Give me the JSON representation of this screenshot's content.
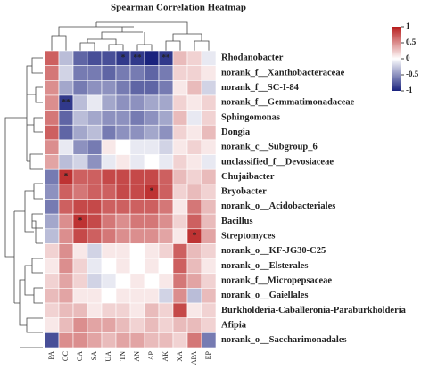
{
  "chart_data": {
    "type": "heatmap",
    "title": "Spearman Correlation Heatmap",
    "columns": [
      "PA",
      "OC",
      "CA",
      "SA",
      "UA",
      "TN",
      "AN",
      "AP",
      "AK",
      "XA",
      "APA",
      "EP"
    ],
    "rows": [
      "Rhodanobacter",
      "norank_f__Xanthobacteraceae",
      "norank_f__SC-I-84",
      "norank_f__Gemmatimonadaceae",
      "Sphingomonas",
      "Dongia",
      "norank_c__Subgroup_6",
      "unclassified_f__Devosiaceae",
      "Chujaibacter",
      "Bryobacter",
      "norank_o__Acidobacteriales",
      "Bacillus",
      "Streptomyces",
      "norank_o__KF-JG30-C25",
      "norank_o__Elsterales",
      "norank_f__Micropepsaceae",
      "norank_o__Gaiellales",
      "Burkholderia-Caballeronia-Paraburkholderia",
      "Afipia",
      "norank_o__Saccharimonadales"
    ],
    "values": [
      [
        0.7,
        -0.3,
        -0.7,
        -0.8,
        -0.8,
        -0.9,
        -0.9,
        -1,
        -0.9,
        0.3,
        0.2,
        -0.1
      ],
      [
        0.6,
        -0.2,
        -0.6,
        -0.6,
        -0.7,
        -0.6,
        -0.6,
        -0.7,
        -0.6,
        0.2,
        0.2,
        0.1
      ],
      [
        0.5,
        -0.4,
        -0.6,
        -0.5,
        -0.5,
        -0.6,
        -0.7,
        -0.7,
        -0.6,
        0.1,
        0.3,
        -0.2
      ],
      [
        0.5,
        -0.9,
        -0.3,
        -0.1,
        -0.4,
        -0.5,
        -0.5,
        -0.4,
        -0.4,
        0.2,
        0.1,
        0.2
      ],
      [
        0.6,
        -0.7,
        -0.3,
        -0.4,
        -0.5,
        -0.5,
        -0.6,
        -0.5,
        -0.4,
        0.3,
        -0.1,
        0.2
      ],
      [
        0.7,
        -0.7,
        -0.4,
        -0.3,
        -0.6,
        -0.5,
        -0.5,
        -0.4,
        -0.5,
        0.2,
        0.1,
        0.3
      ],
      [
        0.5,
        -0.1,
        -0.5,
        -0.6,
        0.1,
        0,
        -0.1,
        -0.1,
        -0.2,
        0.1,
        0.2,
        0.1
      ],
      [
        0.4,
        -0.3,
        -0.2,
        -0.5,
        -0.1,
        0.1,
        -0.1,
        0,
        -0.1,
        0.2,
        0.1,
        -0.1
      ],
      [
        -0.6,
        0.9,
        0.7,
        0.7,
        0.8,
        0.8,
        0.8,
        0.8,
        0.7,
        0.3,
        0.2,
        0.3
      ],
      [
        -0.5,
        0.7,
        0.6,
        0.7,
        0.7,
        0.8,
        0.8,
        0.9,
        0.7,
        0.2,
        0.3,
        0.2
      ],
      [
        -0.6,
        0.7,
        0.8,
        0.8,
        0.7,
        0.7,
        0.7,
        0.7,
        0.6,
        0.1,
        0.6,
        0.3
      ],
      [
        -0.4,
        0.5,
        0.9,
        0.8,
        0.6,
        0.5,
        0.6,
        0.6,
        0.5,
        0.2,
        0.7,
        0.3
      ],
      [
        -0.3,
        0.5,
        0.8,
        0.7,
        0.6,
        0.5,
        0.5,
        0.5,
        0.4,
        0.1,
        0.9,
        0.4
      ],
      [
        0.2,
        0.5,
        0.1,
        -0.2,
        0.1,
        0.1,
        0,
        0.1,
        0.2,
        0.7,
        0.3,
        0.2
      ],
      [
        0.1,
        0.5,
        0.2,
        -0.1,
        0,
        0.1,
        0,
        0.1,
        0,
        0.7,
        0.3,
        0.1
      ],
      [
        0.2,
        0.4,
        0.2,
        -0.2,
        -0.1,
        0,
        0.1,
        0,
        0.1,
        0.6,
        0.4,
        0.2
      ],
      [
        0.3,
        0.4,
        0.1,
        0.1,
        0,
        0.1,
        0.1,
        0.1,
        -0.2,
        0.5,
        -0.3,
        0.3
      ],
      [
        0.2,
        0.3,
        0.3,
        0.1,
        0.2,
        0.2,
        0.1,
        0.3,
        0.2,
        0.8,
        0.1,
        0.2
      ],
      [
        0.1,
        0.3,
        0.5,
        0.4,
        0.4,
        0.3,
        0.2,
        0.3,
        0.2,
        0.3,
        0.3,
        0.2
      ],
      [
        -0.8,
        0.5,
        0.5,
        0.4,
        0.3,
        0.4,
        0.4,
        0.3,
        0.3,
        0.2,
        0.6,
        -0.6
      ]
    ],
    "significance": [
      [
        null,
        null,
        null,
        null,
        null,
        "*",
        "**",
        null,
        "**",
        null,
        null,
        null
      ],
      [
        null,
        null,
        null,
        null,
        null,
        null,
        null,
        null,
        null,
        null,
        null,
        null
      ],
      [
        null,
        null,
        null,
        null,
        null,
        null,
        null,
        null,
        null,
        null,
        null,
        null
      ],
      [
        null,
        "**",
        null,
        null,
        null,
        null,
        null,
        null,
        null,
        null,
        null,
        null
      ],
      [
        null,
        null,
        null,
        null,
        null,
        null,
        null,
        null,
        null,
        null,
        null,
        null
      ],
      [
        null,
        null,
        null,
        null,
        null,
        null,
        null,
        null,
        null,
        null,
        null,
        null
      ],
      [
        null,
        null,
        null,
        null,
        null,
        null,
        null,
        null,
        null,
        null,
        null,
        null
      ],
      [
        null,
        null,
        null,
        null,
        null,
        null,
        null,
        null,
        null,
        null,
        null,
        null
      ],
      [
        null,
        "*",
        null,
        null,
        null,
        null,
        null,
        null,
        null,
        null,
        null,
        null
      ],
      [
        null,
        null,
        null,
        null,
        null,
        null,
        null,
        "*",
        null,
        null,
        null,
        null
      ],
      [
        null,
        null,
        null,
        null,
        null,
        null,
        null,
        null,
        null,
        null,
        null,
        null
      ],
      [
        null,
        null,
        "*",
        null,
        null,
        null,
        null,
        null,
        null,
        null,
        null,
        null
      ],
      [
        null,
        null,
        null,
        null,
        null,
        null,
        null,
        null,
        null,
        null,
        "*",
        null
      ],
      [
        null,
        null,
        null,
        null,
        null,
        null,
        null,
        null,
        null,
        null,
        null,
        null
      ],
      [
        null,
        null,
        null,
        null,
        null,
        null,
        null,
        null,
        null,
        null,
        null,
        null
      ],
      [
        null,
        null,
        null,
        null,
        null,
        null,
        null,
        null,
        null,
        null,
        null,
        null
      ],
      [
        null,
        null,
        null,
        null,
        null,
        null,
        null,
        null,
        null,
        null,
        null,
        null
      ],
      [
        null,
        null,
        null,
        null,
        null,
        null,
        null,
        null,
        null,
        null,
        null,
        null
      ],
      [
        null,
        null,
        null,
        null,
        null,
        null,
        null,
        null,
        null,
        null,
        null,
        null
      ],
      [
        null,
        null,
        null,
        null,
        null,
        null,
        null,
        null,
        null,
        null,
        null,
        null
      ]
    ],
    "clim": [
      -1,
      1
    ],
    "cticks": [
      1,
      0.5,
      0,
      -0.5,
      -1
    ],
    "colors": [
      "#1a237e",
      "#ffffff",
      "#b71c1c"
    ]
  }
}
